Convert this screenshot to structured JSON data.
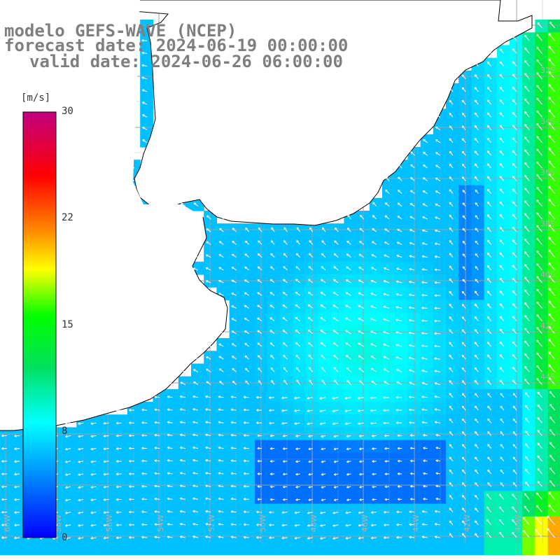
{
  "header": {
    "line1": "modelo GEFS-WAVE (NCEP)",
    "line2": "forecast date: 2024-06-19 00:00:00",
    "line3": "valid date: 2024-06-26 06:00:00"
  },
  "colorbar": {
    "unit": "[m/s]",
    "ticks": [
      "30",
      "22",
      "15",
      "8",
      "0"
    ],
    "colors": [
      "#0000ff",
      "#00a0ff",
      "#00ffff",
      "#00ff00",
      "#ffff00",
      "#ff8000",
      "#ff0000",
      "#c00080"
    ]
  },
  "map": {
    "land_color": "#ffffff",
    "grid_color": "#a0a0a0",
    "coast_color": "#000000",
    "arrow_color": "#ffffff",
    "lat_labels": [
      "32S",
      "34S",
      "36S",
      "38S",
      "40S",
      "42S",
      "44S"
    ],
    "lon_labels": [
      "60W",
      "58W",
      "56W",
      "54W",
      "52W",
      "50W",
      "48W",
      "46W",
      "44W",
      "42W",
      "40W"
    ]
  }
}
